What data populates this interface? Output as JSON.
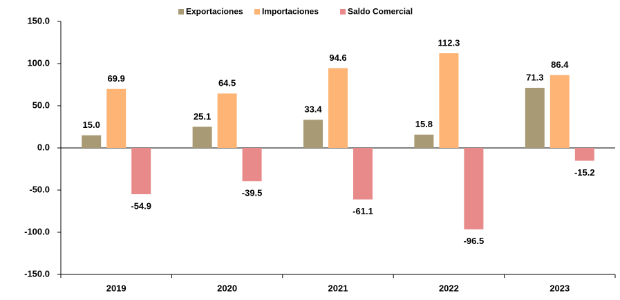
{
  "chart_data": {
    "type": "bar",
    "categories": [
      "2019",
      "2020",
      "2021",
      "2022",
      "2023"
    ],
    "series": [
      {
        "name": "Exportaciones",
        "color": "#a89a74",
        "values": [
          15.0,
          25.1,
          33.4,
          15.8,
          71.3
        ],
        "value_labels": [
          "15.0",
          "25.1",
          "33.4",
          "15.8",
          "71.3"
        ]
      },
      {
        "name": "Importaciones",
        "color": "#fdb474",
        "values": [
          69.9,
          64.5,
          94.6,
          112.3,
          86.4
        ],
        "value_labels": [
          "69.9",
          "64.5",
          "94.6",
          "112.3",
          "86.4"
        ]
      },
      {
        "name": "Saldo Comercial",
        "color": "#e88a8a",
        "values": [
          -54.9,
          -39.5,
          -61.1,
          -96.5,
          -15.2
        ],
        "value_labels": [
          "-54.9",
          "-39.5",
          "-61.1",
          "-96.5",
          "-15.2"
        ]
      }
    ],
    "ylim": [
      -150,
      150
    ],
    "yticks": [
      {
        "value": -150,
        "label": "-150.0"
      },
      {
        "value": -100,
        "label": "-100.0"
      },
      {
        "value": -50,
        "label": "-50.0"
      },
      {
        "value": 0,
        "label": "0.0"
      },
      {
        "value": 50,
        "label": "50.0"
      },
      {
        "value": 100,
        "label": "100.0"
      },
      {
        "value": 150,
        "label": "150.0"
      }
    ],
    "legend": "top"
  }
}
